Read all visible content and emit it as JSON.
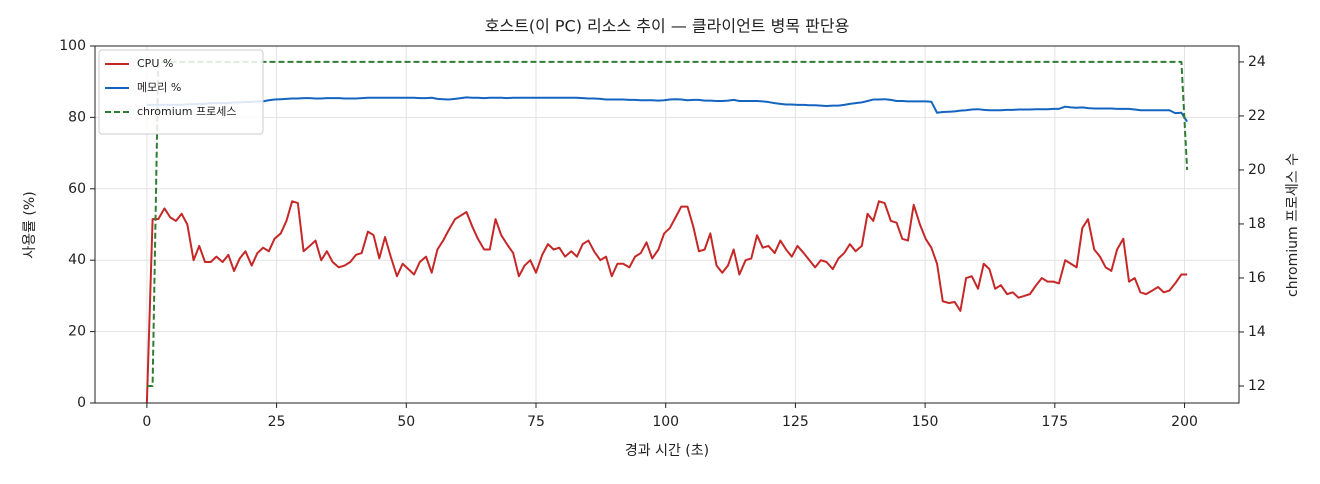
{
  "chart_data": {
    "type": "line",
    "title": "호스트(이 PC) 리소스 추이 — 클라이언트 병목 판단용",
    "x_label": "경과 시간 (초)",
    "y_label": "사용률 (%)",
    "y2_label": "chromium 프로세스 수",
    "x": [
      0,
      1.1,
      2.2,
      3.4,
      4.5,
      5.6,
      6.7,
      7.8,
      9,
      10.1,
      11.2,
      12.3,
      13.4,
      14.6,
      15.7,
      16.8,
      17.9,
      19,
      20.2,
      21.3,
      22.4,
      23.5,
      24.6,
      25.8,
      26.9,
      28,
      29.1,
      30.2,
      31.4,
      32.5,
      33.6,
      34.7,
      35.8,
      37,
      38.1,
      39.2,
      40.3,
      41.4,
      42.6,
      43.7,
      44.8,
      45.9,
      47,
      48.2,
      49.3,
      50.4,
      51.5,
      52.6,
      53.8,
      54.9,
      56,
      57.1,
      58.2,
      59.4,
      60.5,
      61.6,
      62.7,
      63.8,
      65,
      66.1,
      67.2,
      68.3,
      69.4,
      70.6,
      71.7,
      72.8,
      73.9,
      75,
      76.2,
      77.3,
      78.4,
      79.5,
      80.6,
      81.8,
      82.9,
      84,
      85.1,
      86.2,
      87.4,
      88.5,
      89.6,
      90.7,
      91.8,
      93,
      94.1,
      95.2,
      96.3,
      97.4,
      98.6,
      99.7,
      100.8,
      101.9,
      103,
      104.2,
      105.3,
      106.4,
      107.5,
      108.6,
      109.8,
      110.9,
      112,
      113.1,
      114.2,
      115.4,
      116.5,
      117.6,
      118.7,
      119.8,
      121,
      122.1,
      123.2,
      124.3,
      125.4,
      126.6,
      127.7,
      128.8,
      129.9,
      131,
      132.2,
      133.3,
      134.4,
      135.5,
      136.6,
      137.8,
      138.9,
      140,
      141.1,
      142.2,
      143.4,
      144.5,
      145.6,
      146.7,
      147.8,
      149,
      150.1,
      151.2,
      152.3,
      153.4,
      154.6,
      155.7,
      156.8,
      157.9,
      159,
      160.2,
      161.3,
      162.4,
      163.5,
      164.6,
      165.8,
      166.9,
      168,
      169.1,
      170.2,
      171.4,
      172.5,
      173.6,
      174.7,
      175.8,
      177,
      178.1,
      179.2,
      180.3,
      181.4,
      182.6,
      183.7,
      184.8,
      185.9,
      187,
      188.2,
      189.3,
      190.4,
      191.5,
      192.6,
      193.8,
      194.9,
      196,
      197.1,
      198.2,
      199.4,
      200.5
    ],
    "series": [
      {
        "name": "CPU %",
        "color": "#c62828",
        "axis": "y",
        "dashed": false,
        "values": [
          0,
          51.5,
          51.5,
          54.5,
          52,
          51,
          53,
          50,
          40,
          44,
          39.5,
          39.5,
          41,
          39.5,
          41.5,
          37,
          40.5,
          42.5,
          38.5,
          42,
          43.5,
          42.5,
          46,
          47.5,
          51,
          56.5,
          56,
          42.5,
          44,
          45.5,
          40,
          42.5,
          39.5,
          38,
          38.5,
          39.5,
          41.5,
          42,
          48,
          47,
          40.5,
          46.5,
          41,
          35.5,
          39,
          37.5,
          36,
          39.5,
          41,
          36.5,
          43,
          45.5,
          48.5,
          51.5,
          52.5,
          53.5,
          49.5,
          46,
          43,
          43,
          51.5,
          47,
          44.5,
          42,
          35.5,
          38.5,
          40,
          36.5,
          41.5,
          44.5,
          43,
          43.5,
          41,
          42.5,
          41,
          44.5,
          45.5,
          42.5,
          40,
          41,
          35.5,
          39,
          39,
          38,
          41,
          42,
          45,
          40.5,
          43,
          47.5,
          49,
          52,
          55,
          55,
          49.5,
          42.5,
          43,
          47.5,
          38.5,
          36.5,
          38.5,
          43,
          36,
          40,
          40.5,
          47,
          43.5,
          44,
          42,
          45.5,
          43,
          41,
          44,
          42,
          40,
          38,
          40,
          39.5,
          37.5,
          40.5,
          42,
          44.5,
          42.5,
          44,
          53,
          51,
          56.5,
          56,
          51,
          50.5,
          46,
          45.5,
          55.5,
          50,
          46,
          43.5,
          39,
          28.5,
          28,
          28.3,
          25.8,
          35,
          35.5,
          32,
          39,
          37.5,
          32,
          33,
          30.5,
          31,
          29.5,
          30,
          30.5,
          33,
          35,
          34,
          34,
          33.5,
          40,
          39,
          38,
          49,
          51.5,
          43,
          41,
          38,
          37,
          43,
          46,
          34,
          35,
          31,
          30.5,
          31.5,
          32.5,
          31,
          31.5,
          33.5,
          36,
          36
        ]
      },
      {
        "name": "메모리 %",
        "color": "#1565c0",
        "axis": "y",
        "dashed": false,
        "values": [
          83.5,
          83.5,
          83.5,
          83.5,
          83.5,
          83.5,
          83.5,
          83.7,
          83.7,
          83.8,
          83.8,
          84,
          84,
          84,
          84,
          84.2,
          84.2,
          84.3,
          84.3,
          84.5,
          84.5,
          84.8,
          85,
          85.1,
          85.2,
          85.3,
          85.3,
          85.4,
          85.4,
          85.3,
          85.3,
          85.4,
          85.4,
          85.4,
          85.3,
          85.3,
          85.3,
          85.4,
          85.5,
          85.5,
          85.5,
          85.5,
          85.5,
          85.5,
          85.5,
          85.5,
          85.5,
          85.4,
          85.4,
          85.5,
          85.2,
          85.1,
          85,
          85.2,
          85.4,
          85.6,
          85.5,
          85.5,
          85.4,
          85.5,
          85.5,
          85.5,
          85.4,
          85.5,
          85.5,
          85.5,
          85.5,
          85.5,
          85.5,
          85.5,
          85.5,
          85.5,
          85.5,
          85.5,
          85.5,
          85.4,
          85.3,
          85.3,
          85.2,
          85,
          85,
          85,
          85,
          84.9,
          84.9,
          84.8,
          84.8,
          84.8,
          84.7,
          84.8,
          85,
          85.1,
          85,
          84.8,
          84.9,
          84.9,
          84.7,
          84.7,
          84.6,
          84.6,
          84.7,
          84.9,
          84.6,
          84.6,
          84.6,
          84.6,
          84.5,
          84.3,
          84,
          83.8,
          83.6,
          83.6,
          83.5,
          83.5,
          83.4,
          83.4,
          83.3,
          83.2,
          83.3,
          83.3,
          83.5,
          83.8,
          84,
          84.2,
          84.6,
          85,
          85,
          85.1,
          84.9,
          84.6,
          84.6,
          84.5,
          84.5,
          84.5,
          84.5,
          84.4,
          81.3,
          81.5,
          81.6,
          81.7,
          81.9,
          82,
          82.2,
          82.3,
          82.1,
          82,
          82,
          82,
          82.1,
          82.1,
          82.2,
          82.2,
          82.2,
          82.3,
          82.3,
          82.3,
          82.4,
          82.4,
          83,
          82.8,
          82.7,
          82.8,
          82.6,
          82.5,
          82.5,
          82.5,
          82.5,
          82.4,
          82.4,
          82.4,
          82.2,
          82,
          82,
          82,
          82,
          82,
          82,
          81.2,
          81.3,
          78.8
        ]
      },
      {
        "name": "chromium 프로세스",
        "color": "#2e7d32",
        "axis": "y2",
        "dashed": true,
        "values": [
          12,
          12,
          24,
          24,
          24,
          24,
          24,
          24,
          24,
          24,
          24,
          24,
          24,
          24,
          24,
          24,
          24,
          24,
          24,
          24,
          24,
          24,
          24,
          24,
          24,
          24,
          24,
          24,
          24,
          24,
          24,
          24,
          24,
          24,
          24,
          24,
          24,
          24,
          24,
          24,
          24,
          24,
          24,
          24,
          24,
          24,
          24,
          24,
          24,
          24,
          24,
          24,
          24,
          24,
          24,
          24,
          24,
          24,
          24,
          24,
          24,
          24,
          24,
          24,
          24,
          24,
          24,
          24,
          24,
          24,
          24,
          24,
          24,
          24,
          24,
          24,
          24,
          24,
          24,
          24,
          24,
          24,
          24,
          24,
          24,
          24,
          24,
          24,
          24,
          24,
          24,
          24,
          24,
          24,
          24,
          24,
          24,
          24,
          24,
          24,
          24,
          24,
          24,
          24,
          24,
          24,
          24,
          24,
          24,
          24,
          24,
          24,
          24,
          24,
          24,
          24,
          24,
          24,
          24,
          24,
          24,
          24,
          24,
          24,
          24,
          24,
          24,
          24,
          24,
          24,
          24,
          24,
          24,
          24,
          24,
          24,
          24,
          24,
          24,
          24,
          24,
          24,
          24,
          24,
          24,
          24,
          24,
          24,
          24,
          24,
          24,
          24,
          24,
          24,
          24,
          24,
          24,
          24,
          24,
          24,
          24,
          24,
          24,
          24,
          24,
          24,
          24,
          24,
          24,
          24,
          24,
          24,
          24,
          24,
          24,
          24,
          24,
          24,
          24,
          20
        ]
      }
    ],
    "xlim": [
      -10,
      210.5
    ],
    "xticks": [
      0,
      25,
      50,
      75,
      100,
      125,
      150,
      175,
      200
    ],
    "ylim": [
      0,
      100
    ],
    "yticks": [
      0,
      20,
      40,
      60,
      80,
      100
    ],
    "y2lim": [
      11.37,
      24.59
    ],
    "y2ticks": [
      12,
      14,
      16,
      18,
      20,
      22,
      24
    ],
    "grid": true,
    "legend": "upper-left"
  }
}
